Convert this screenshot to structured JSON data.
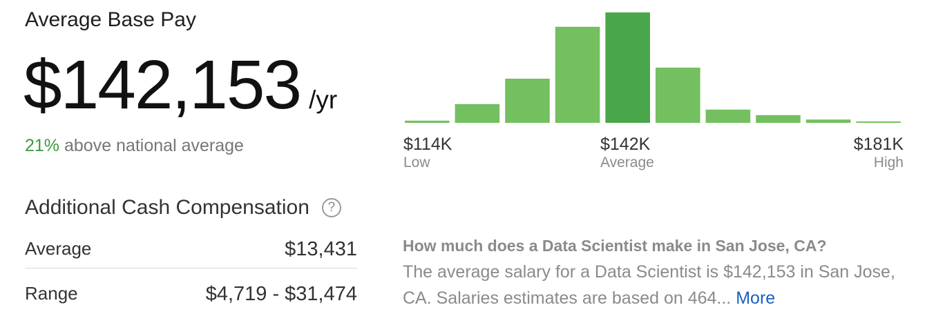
{
  "base_pay": {
    "title": "Average Base Pay",
    "amount": "$142,153",
    "unit": "/yr",
    "compare_pct": "21%",
    "compare_text": " above national average"
  },
  "additional_cash": {
    "title": "Additional Cash Compensation",
    "help_icon": "question-circle-icon",
    "help_glyph": "?",
    "rows": [
      {
        "label": "Average",
        "value": "$13,431"
      },
      {
        "label": "Range",
        "value": "$4,719 - $31,474"
      }
    ]
  },
  "distribution": {
    "low": {
      "value": "$114K",
      "label": "Low"
    },
    "average": {
      "value": "$142K",
      "label": "Average"
    },
    "high": {
      "value": "$181K",
      "label": "High"
    }
  },
  "colors": {
    "bar": "#74bf5f",
    "bar_highlight": "#4aa64a",
    "accent_green": "#3d9a40",
    "link": "#1861bf"
  },
  "description": {
    "title": "How much does a Data Scientist make in San Jose, CA?",
    "body": "The average salary for a Data Scientist is $142,153 in San Jose, CA. Salaries estimates are based on 464...",
    "more_label": "More"
  },
  "chart_data": {
    "type": "bar",
    "categories": [
      "1",
      "2",
      "3",
      "4",
      "5",
      "6",
      "7",
      "8",
      "9",
      "10"
    ],
    "values": [
      2,
      17,
      40,
      87,
      100,
      50,
      12,
      7,
      3,
      1
    ],
    "highlight_index": 4,
    "ylim": [
      0,
      100
    ],
    "xlabel": "",
    "ylabel": "",
    "title": "",
    "grid": false
  }
}
